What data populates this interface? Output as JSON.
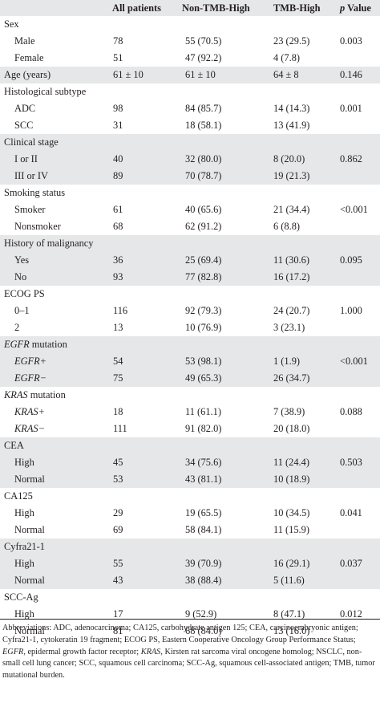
{
  "header": {
    "col0": "",
    "col1": "All patients",
    "col2": "Non-TMB-High",
    "col3": "TMB-High",
    "col4_italic": "p",
    "col4_rest": " Value"
  },
  "groups": [
    {
      "title": "Sex",
      "rows": [
        {
          "label": "Male",
          "all": "78",
          "non": "55 (70.5)",
          "tmb": "23 (29.5)",
          "p": "0.003"
        },
        {
          "label": "Female",
          "all": "51",
          "non": "47 (92.2)",
          "tmb": "4 (7.8)",
          "p": ""
        }
      ]
    },
    {
      "title": "",
      "rows": [
        {
          "label": "Age (years)",
          "all": "61 ± 10",
          "non": "61 ± 10",
          "tmb": "64 ± 8",
          "p": "0.146"
        }
      ]
    },
    {
      "title": "Histological subtype",
      "rows": [
        {
          "label": "ADC",
          "all": "98",
          "non": "84 (85.7)",
          "tmb": "14 (14.3)",
          "p": "0.001"
        },
        {
          "label": "SCC",
          "all": "31",
          "non": "18 (58.1)",
          "tmb": "13 (41.9)",
          "p": ""
        }
      ]
    },
    {
      "title": "Clinical stage",
      "rows": [
        {
          "label": "I or II",
          "all": "40",
          "non": "32 (80.0)",
          "tmb": "8 (20.0)",
          "p": "0.862"
        },
        {
          "label": "III or IV",
          "all": "89",
          "non": "70 (78.7)",
          "tmb": "19 (21.3)",
          "p": ""
        }
      ]
    },
    {
      "title": "Smoking status",
      "rows": [
        {
          "label": "Smoker",
          "all": "61",
          "non": "40 (65.6)",
          "tmb": "21 (34.4)",
          "p": "<0.001"
        },
        {
          "label": "Nonsmoker",
          "all": "68",
          "non": "62 (91.2)",
          "tmb": "6 (8.8)",
          "p": ""
        }
      ]
    },
    {
      "title": "History of malignancy",
      "rows": [
        {
          "label": "Yes",
          "all": "36",
          "non": "25 (69.4)",
          "tmb": "11 (30.6)",
          "p": "0.095"
        },
        {
          "label": "No",
          "all": "93",
          "non": "77 (82.8)",
          "tmb": "16 (17.2)",
          "p": ""
        }
      ]
    },
    {
      "title": "ECOG PS",
      "rows": [
        {
          "label": "0–1",
          "all": "116",
          "non": "92 (79.3)",
          "tmb": "24 (20.7)",
          "p": "1.000"
        },
        {
          "label": "2",
          "all": "13",
          "non": "10 (76.9)",
          "tmb": "3 (23.1)",
          "p": ""
        }
      ]
    },
    {
      "title_italic": "EGFR",
      "title_rest": " mutation",
      "rows": [
        {
          "label": "EGFR+",
          "italic": true,
          "all": "54",
          "non": "53 (98.1)",
          "tmb": "1 (1.9)",
          "p": "<0.001"
        },
        {
          "label": "EGFR−",
          "italic": true,
          "all": "75",
          "non": "49 (65.3)",
          "tmb": "26 (34.7)",
          "p": ""
        }
      ]
    },
    {
      "title_italic": "KRAS",
      "title_rest": " mutation",
      "rows": [
        {
          "label": "KRAS+",
          "italic": true,
          "all": "18",
          "non": "11 (61.1)",
          "tmb": "7 (38.9)",
          "p": "0.088"
        },
        {
          "label": "KRAS−",
          "italic": true,
          "all": "111",
          "non": "91 (82.0)",
          "tmb": "20 (18.0)",
          "p": ""
        }
      ]
    },
    {
      "title": "CEA",
      "rows": [
        {
          "label": "High",
          "all": "45",
          "non": "34 (75.6)",
          "tmb": "11 (24.4)",
          "p": "0.503"
        },
        {
          "label": "Normal",
          "all": "53",
          "non": "43 (81.1)",
          "tmb": "10 (18.9)",
          "p": ""
        }
      ]
    },
    {
      "title": "CA125",
      "rows": [
        {
          "label": "High",
          "all": "29",
          "non": "19 (65.5)",
          "tmb": "10 (34.5)",
          "p": "0.041"
        },
        {
          "label": "Normal",
          "all": "69",
          "non": "58 (84.1)",
          "tmb": "11 (15.9)",
          "p": ""
        }
      ]
    },
    {
      "title": "Cyfra21-1",
      "rows": [
        {
          "label": "High",
          "all": "55",
          "non": "39 (70.9)",
          "tmb": "16 (29.1)",
          "p": "0.037"
        },
        {
          "label": "Normal",
          "all": "43",
          "non": "38 (88.4)",
          "tmb": "5 (11.6)",
          "p": ""
        }
      ]
    },
    {
      "title": "SCC-Ag",
      "rows": [
        {
          "label": "High",
          "all": "17",
          "non": "9 (52.9)",
          "tmb": "8 (47.1)",
          "p": "0.012"
        },
        {
          "label": "Normal",
          "all": "81",
          "non": "68 (84.0)",
          "tmb": "13 (16.0)",
          "p": ""
        }
      ]
    }
  ],
  "footnote": {
    "part1": "Abbreviations: ADC, adenocarcinoma; CA125, carbohydrate antigen 125; CEA, carcinoembryonic antigen; Cyfra21-1, cytokeratin 19 fragment; ECOG PS, Eastern Cooperative Oncology Group Performance Status; ",
    "egfr": "EGFR",
    "part2": ", epidermal growth factor receptor; ",
    "kras": "KRAS",
    "part3": ", Kirsten rat sarcoma viral oncogene homolog; NSCLC, non-small cell lung cancer; SCC, squamous cell carcinoma; SCC-Ag, squamous cell-associated antigen; TMB, tumor mutational burden."
  },
  "colors": {
    "shade": "#e6e7e8",
    "text": "#231f20"
  }
}
